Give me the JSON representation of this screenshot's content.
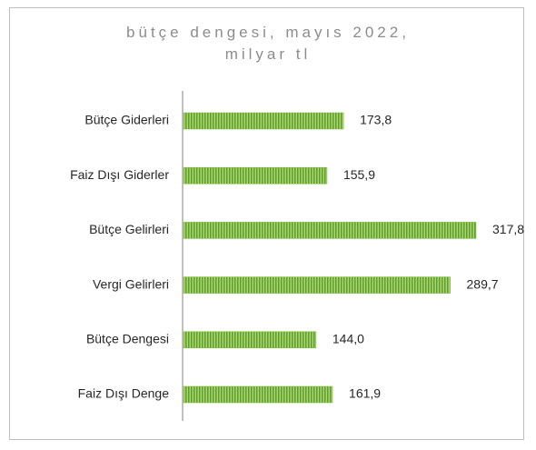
{
  "chart_data": {
    "type": "bar",
    "orientation": "horizontal",
    "title": "bütçe dengesi, mayıs 2022, milyar tl",
    "categories": [
      "Bütçe Giderleri",
      "Faiz Dışı Giderler",
      "Bütçe Gelirleri",
      "Vergi Gelirleri",
      "Bütçe Dengesi",
      "Faiz Dışı Denge"
    ],
    "values": [
      173.8,
      155.9,
      317.8,
      289.7,
      144.0,
      161.9
    ],
    "value_labels": [
      "173,8",
      "155,9",
      "317,8",
      "289,7",
      "144,0",
      "161,9"
    ],
    "color": "#7cb83a"
  }
}
